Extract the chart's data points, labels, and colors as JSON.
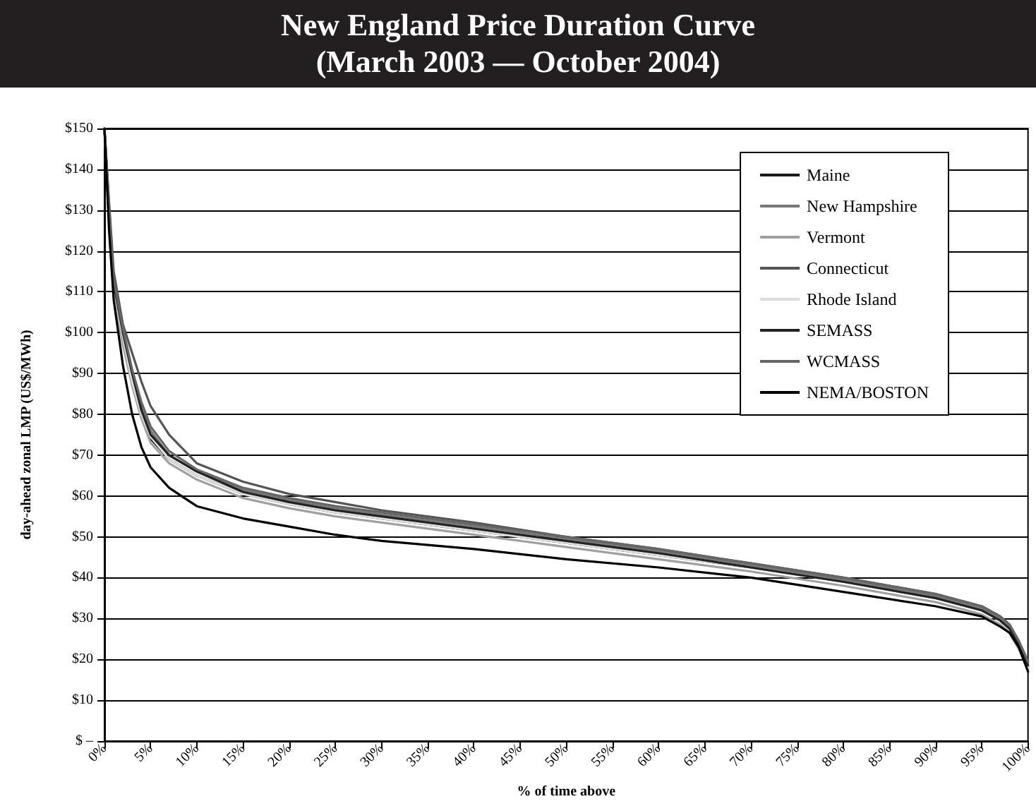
{
  "chart_data": {
    "type": "line",
    "title": "New England Price Duration Curve",
    "subtitle": "(March 2003 — October 2004)",
    "xlabel": "% of time above",
    "ylabel": "day-ahead zonal LMP (US$/MWh)",
    "x": [
      0,
      0.5,
      1,
      2,
      3,
      4,
      5,
      7,
      10,
      15,
      20,
      25,
      30,
      40,
      50,
      60,
      70,
      80,
      90,
      95,
      97,
      98,
      99,
      100
    ],
    "series": [
      {
        "name": "Maine",
        "color": "#1a1a1a",
        "values": [
          150,
          128,
          110,
          98,
          88,
          80,
          74,
          69,
          65,
          60.5,
          58,
          56,
          54.5,
          51.5,
          48.5,
          45.5,
          42.5,
          39,
          35,
          32,
          29.5,
          27.5,
          23.5,
          18
        ]
      },
      {
        "name": "New Hampshire",
        "color": "#777777",
        "values": [
          150,
          130,
          112,
          100,
          90,
          82,
          76,
          70,
          66,
          61.5,
          59,
          57,
          55.5,
          52.5,
          49.5,
          46.5,
          43,
          39.5,
          35.5,
          32.5,
          30,
          28,
          24,
          19
        ]
      },
      {
        "name": "Vermont",
        "color": "#a0a0a0",
        "values": [
          150,
          127,
          109,
          97,
          87,
          79,
          73,
          68,
          64,
          59.5,
          57,
          55,
          53.5,
          50.5,
          47.5,
          44.5,
          41.5,
          38,
          34,
          31,
          28.5,
          26.5,
          22.5,
          17.5
        ]
      },
      {
        "name": "Connecticut",
        "color": "#555555",
        "values": [
          150,
          132,
          115,
          102,
          95,
          88,
          82,
          75,
          68,
          63.5,
          60.5,
          58.5,
          56.5,
          53.5,
          50,
          47,
          43.5,
          40,
          36,
          33,
          30.5,
          28.5,
          24.5,
          19.5
        ]
      },
      {
        "name": "Rhode Island",
        "color": "#dddddd",
        "values": [
          150,
          129,
          111,
          99,
          88,
          80,
          74.5,
          69,
          65,
          60.5,
          58,
          56,
          54.5,
          51.5,
          48.5,
          45.5,
          42.5,
          39,
          35,
          32,
          29.5,
          27.5,
          23,
          18
        ]
      },
      {
        "name": "SEMASS",
        "color": "#222222",
        "values": [
          150,
          130,
          112,
          100,
          90,
          81,
          75,
          70,
          66,
          61,
          58.5,
          56.5,
          55,
          52,
          49,
          46,
          42.5,
          39,
          35,
          32,
          29.5,
          27.5,
          23.5,
          18.5
        ]
      },
      {
        "name": "WCMASS",
        "color": "#666666",
        "values": [
          150,
          131,
          113,
          101,
          91,
          83,
          77,
          71,
          66.5,
          62,
          59.5,
          57.5,
          56,
          53,
          50,
          47,
          43.5,
          40,
          36,
          33,
          30.5,
          28.5,
          24.5,
          19.5
        ]
      },
      {
        "name": "NEMA/BOSTON",
        "color": "#000000",
        "values": [
          150,
          125,
          108,
          92,
          80,
          72,
          67,
          62,
          57.5,
          54.5,
          52.5,
          50.5,
          49,
          47,
          44.5,
          42.5,
          40,
          36.5,
          33,
          30.5,
          28,
          26.5,
          23,
          17
        ]
      }
    ],
    "xlim": [
      0,
      100
    ],
    "xticks": [
      {
        "value": 0,
        "label": "0%"
      },
      {
        "value": 5,
        "label": "5%"
      },
      {
        "value": 10,
        "label": "10%"
      },
      {
        "value": 15,
        "label": "15%"
      },
      {
        "value": 20,
        "label": "20%"
      },
      {
        "value": 25,
        "label": "25%"
      },
      {
        "value": 30,
        "label": "30%"
      },
      {
        "value": 35,
        "label": "35%"
      },
      {
        "value": 40,
        "label": "40%"
      },
      {
        "value": 45,
        "label": "45%"
      },
      {
        "value": 50,
        "label": "50%"
      },
      {
        "value": 55,
        "label": "55%"
      },
      {
        "value": 60,
        "label": "60%"
      },
      {
        "value": 65,
        "label": "65%"
      },
      {
        "value": 70,
        "label": "70%"
      },
      {
        "value": 75,
        "label": "75%"
      },
      {
        "value": 80,
        "label": "80%"
      },
      {
        "value": 85,
        "label": "85%"
      },
      {
        "value": 90,
        "label": "90%"
      },
      {
        "value": 95,
        "label": "95%"
      },
      {
        "value": 100,
        "label": "100%"
      }
    ],
    "ylim": [
      0,
      150
    ],
    "yticks": [
      {
        "value": 0,
        "label": "$ –"
      },
      {
        "value": 10,
        "label": "$10"
      },
      {
        "value": 20,
        "label": "$20"
      },
      {
        "value": 30,
        "label": "$30"
      },
      {
        "value": 40,
        "label": "$40"
      },
      {
        "value": 50,
        "label": "$50"
      },
      {
        "value": 60,
        "label": "$60"
      },
      {
        "value": 70,
        "label": "$70"
      },
      {
        "value": 80,
        "label": "$80"
      },
      {
        "value": 90,
        "label": "$90"
      },
      {
        "value": 100,
        "label": "$100"
      },
      {
        "value": 110,
        "label": "$110"
      },
      {
        "value": 120,
        "label": "$120"
      },
      {
        "value": 130,
        "label": "$130"
      },
      {
        "value": 140,
        "label": "$140"
      },
      {
        "value": 150,
        "label": "$150"
      }
    ],
    "grid": "y",
    "legend": "top right",
    "marker": "none",
    "line_style": "solid"
  }
}
